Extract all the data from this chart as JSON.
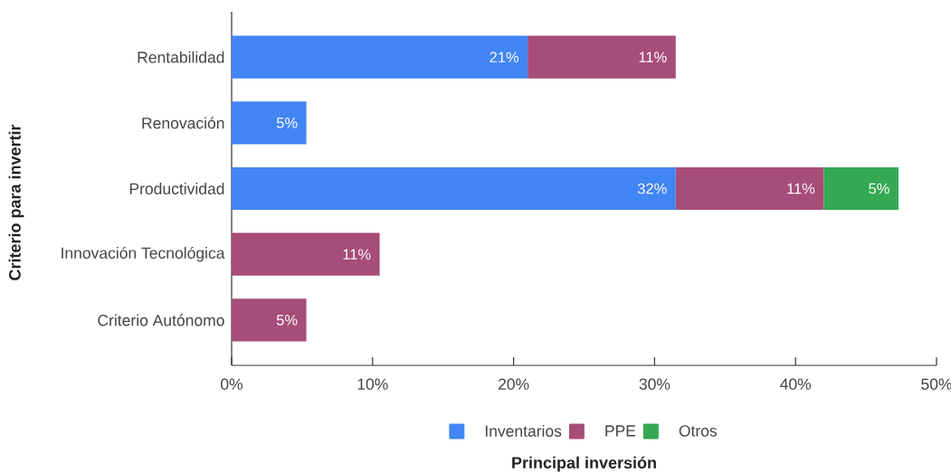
{
  "chart_data": {
    "type": "bar",
    "orientation": "horizontal",
    "stacked": true,
    "xlabel": "Principal inversión",
    "ylabel": "Criterio para invertir",
    "categories": [
      "Rentabilidad",
      "Renovación",
      "Productividad",
      "Innovación Tecnológica",
      "Criterio Autónomo"
    ],
    "series": [
      {
        "name": "Inventarios",
        "color": "#4285f4",
        "values": [
          21.0,
          5.3,
          31.5,
          null,
          null
        ],
        "value_labels": [
          "21%",
          "5%",
          "32%",
          null,
          null
        ]
      },
      {
        "name": "PPE",
        "color": "#a64d79",
        "values": [
          10.5,
          null,
          10.5,
          10.5,
          5.3
        ],
        "value_labels": [
          "11%",
          null,
          "11%",
          "11%",
          "5%"
        ]
      },
      {
        "name": "Otros",
        "color": "#34a853",
        "values": [
          null,
          null,
          5.3,
          null,
          null
        ],
        "value_labels": [
          null,
          null,
          "5%",
          null,
          null
        ]
      }
    ],
    "xlim": [
      0,
      50
    ],
    "xticks": [
      {
        "value": 0,
        "label": "0%"
      },
      {
        "value": 10,
        "label": "10%"
      },
      {
        "value": 20,
        "label": "20%"
      },
      {
        "value": 30,
        "label": "30%"
      },
      {
        "value": 40,
        "label": "40%"
      },
      {
        "value": 50,
        "label": "50%"
      }
    ],
    "legend": "bottom"
  }
}
